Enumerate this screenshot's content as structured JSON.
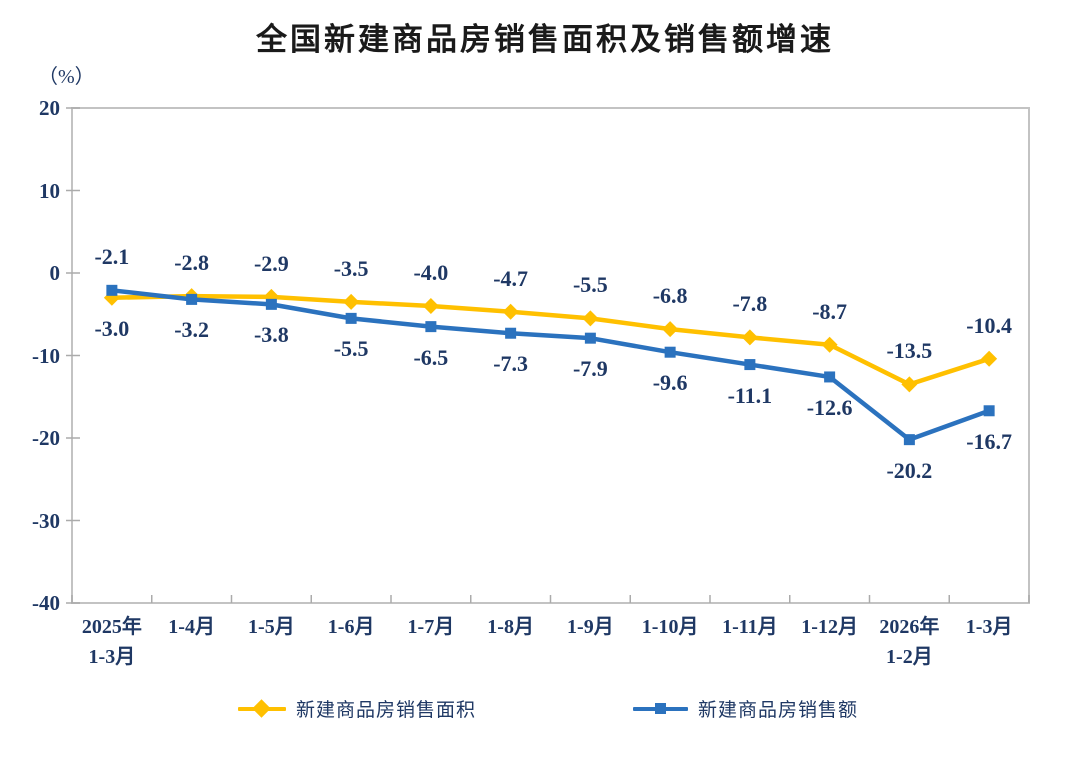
{
  "title": "全国新建商品房销售面积及销售额增速",
  "chart_data": {
    "type": "line",
    "title": "全国新建商品房销售面积及销售额增速",
    "ylabel": "（%）",
    "unit_label": "（%）",
    "xlabel": "",
    "grid": false,
    "legend_position": "bottom",
    "ylim": [
      -40,
      20
    ],
    "y_axis": {
      "min": -40,
      "max": 20,
      "tick_step": 10,
      "tick_labels": [
        "20",
        "10",
        "0",
        "-10",
        "-20",
        "-30",
        "-40"
      ]
    },
    "categories": [
      [
        "2025年",
        "1-3月"
      ],
      [
        "1-4月"
      ],
      [
        "1-5月"
      ],
      [
        "1-6月"
      ],
      [
        "1-7月"
      ],
      [
        "1-8月"
      ],
      [
        "1-9月"
      ],
      [
        "1-10月"
      ],
      [
        "1-11月"
      ],
      [
        "1-12月"
      ],
      [
        "2026年",
        "1-2月"
      ],
      [
        "1-3月"
      ]
    ],
    "series": [
      {
        "name": "新建商品房销售面积",
        "color": "#FFC000",
        "marker": "diamond",
        "values": [
          -3.0,
          -2.8,
          -2.9,
          -3.5,
          -4.0,
          -4.7,
          -5.5,
          -6.8,
          -7.8,
          -8.7,
          -13.5,
          -10.4
        ]
      },
      {
        "name": "新建商品房销售额",
        "color": "#2B72BE",
        "marker": "square",
        "values": [
          -2.1,
          -3.2,
          -3.8,
          -5.5,
          -6.5,
          -7.3,
          -7.9,
          -9.6,
          -11.1,
          -12.6,
          -20.2,
          -16.7
        ]
      }
    ],
    "colors": {
      "label_text": "#1F3864",
      "axis_line": "#C3C3C3",
      "tick": "#ABABAB",
      "title_text": "#1A1A1A"
    }
  }
}
